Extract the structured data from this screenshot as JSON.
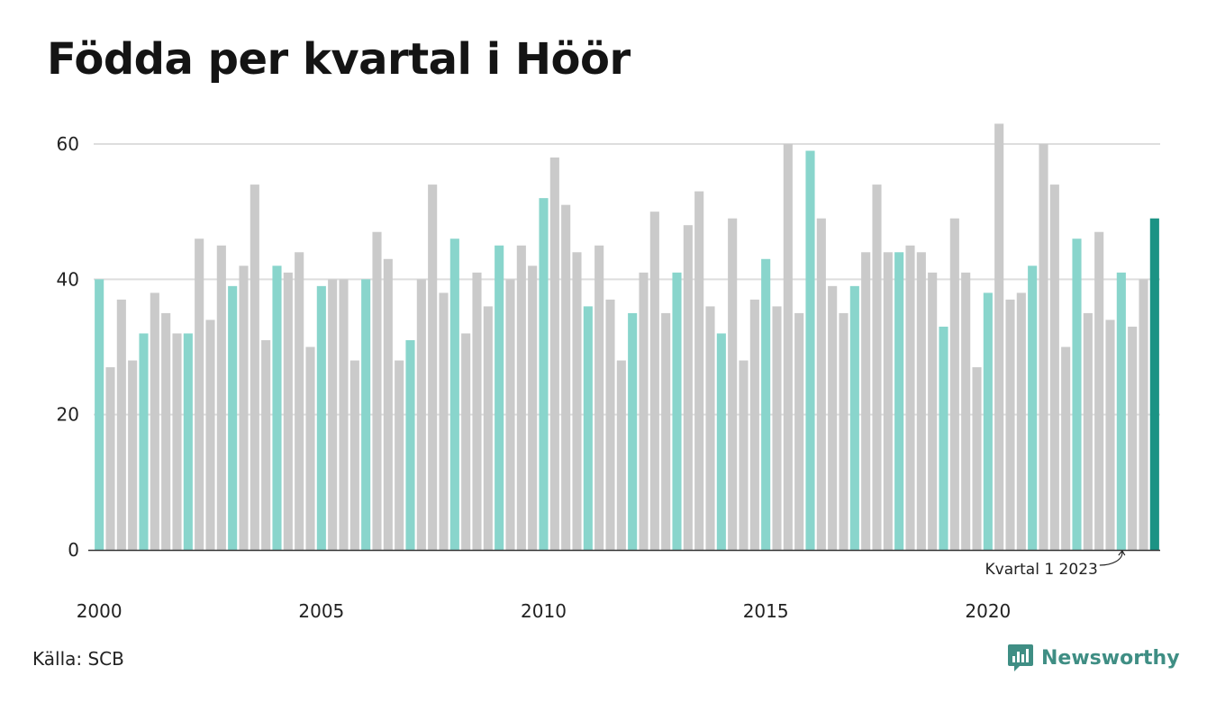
{
  "title": "Födda per kvartal i Höör",
  "source": "Källa: SCB",
  "brand": {
    "name": "Newsworthy",
    "icon": "newsworthy-logo-icon",
    "color": "#3f8e84"
  },
  "colors": {
    "q1": "#89d5cc",
    "other": "#cacaca",
    "highlight": "#1b9384",
    "grid": "#dddddd",
    "axis": "#333333"
  },
  "annotation": {
    "text": "Kvartal 1 2023"
  },
  "chart_data": {
    "type": "bar",
    "title": "Födda per kvartal i Höör",
    "xlabel": "",
    "ylabel": "",
    "ylim": [
      0,
      65
    ],
    "yticks": [
      "0",
      "20",
      "40",
      "60"
    ],
    "xticks": [
      "2000",
      "2005",
      "2010",
      "2015",
      "2020"
    ],
    "grid": true,
    "start": {
      "year": 2000,
      "quarter": 1
    },
    "highlight": "2023 Q4",
    "categories": [
      "2000 Q1",
      "2000 Q2",
      "2000 Q3",
      "2000 Q4",
      "2001 Q1",
      "2001 Q2",
      "2001 Q3",
      "2001 Q4",
      "2002 Q1",
      "2002 Q2",
      "2002 Q3",
      "2002 Q4",
      "2003 Q1",
      "2003 Q2",
      "2003 Q3",
      "2003 Q4",
      "2004 Q1",
      "2004 Q2",
      "2004 Q3",
      "2004 Q4",
      "2005 Q1",
      "2005 Q2",
      "2005 Q3",
      "2005 Q4",
      "2006 Q1",
      "2006 Q2",
      "2006 Q3",
      "2006 Q4",
      "2007 Q1",
      "2007 Q2",
      "2007 Q3",
      "2007 Q4",
      "2008 Q1",
      "2008 Q2",
      "2008 Q3",
      "2008 Q4",
      "2009 Q1",
      "2009 Q2",
      "2009 Q3",
      "2009 Q4",
      "2010 Q1",
      "2010 Q2",
      "2010 Q3",
      "2010 Q4",
      "2011 Q1",
      "2011 Q2",
      "2011 Q3",
      "2011 Q4",
      "2012 Q1",
      "2012 Q2",
      "2012 Q3",
      "2012 Q4",
      "2013 Q1",
      "2013 Q2",
      "2013 Q3",
      "2013 Q4",
      "2014 Q1",
      "2014 Q2",
      "2014 Q3",
      "2014 Q4",
      "2015 Q1",
      "2015 Q2",
      "2015 Q3",
      "2015 Q4",
      "2016 Q1",
      "2016 Q2",
      "2016 Q3",
      "2016 Q4",
      "2017 Q1",
      "2017 Q2",
      "2017 Q3",
      "2017 Q4",
      "2018 Q1",
      "2018 Q2",
      "2018 Q3",
      "2018 Q4",
      "2019 Q1",
      "2019 Q2",
      "2019 Q3",
      "2019 Q4",
      "2020 Q1",
      "2020 Q2",
      "2020 Q3",
      "2020 Q4",
      "2021 Q1",
      "2021 Q2",
      "2021 Q3",
      "2021 Q4",
      "2022 Q1",
      "2022 Q2",
      "2022 Q3",
      "2022 Q4",
      "2023 Q1",
      "2023 Q2",
      "2023 Q3",
      "2023 Q4"
    ],
    "values": [
      40,
      27,
      37,
      28,
      32,
      38,
      35,
      32,
      32,
      46,
      34,
      45,
      39,
      42,
      54,
      31,
      42,
      41,
      44,
      30,
      39,
      40,
      40,
      28,
      40,
      47,
      43,
      28,
      31,
      40,
      54,
      38,
      46,
      32,
      41,
      36,
      45,
      40,
      45,
      42,
      52,
      58,
      51,
      44,
      36,
      45,
      37,
      28,
      35,
      41,
      50,
      35,
      41,
      48,
      53,
      36,
      32,
      49,
      28,
      37,
      43,
      36,
      60,
      35,
      59,
      49,
      39,
      35,
      39,
      44,
      54,
      44,
      44,
      45,
      44,
      41,
      33,
      49,
      41,
      27,
      38,
      63,
      37,
      38,
      42,
      60,
      54,
      30,
      46,
      35,
      47,
      34,
      41,
      33,
      40,
      49
    ]
  }
}
